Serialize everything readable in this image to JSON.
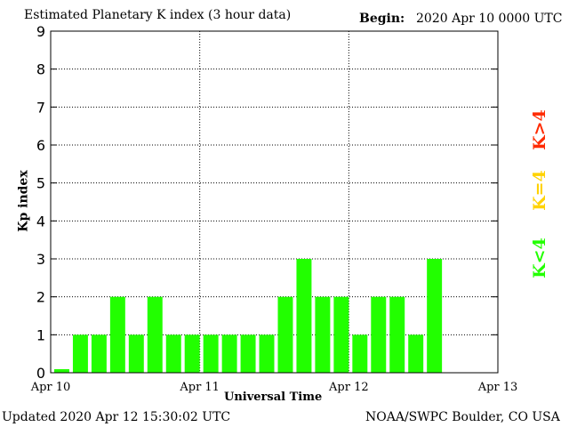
{
  "chart_data": {
    "type": "bar",
    "title": "Estimated Planetary K index (3 hour data)",
    "begin_label": "Begin:",
    "begin_value": "2020 Apr 10 0000 UTC",
    "xlabel": "Universal Time",
    "ylabel": "Kp index",
    "ylim": [
      0,
      9
    ],
    "yticks": [
      "0",
      "1",
      "2",
      "3",
      "4",
      "5",
      "6",
      "7",
      "8",
      "9"
    ],
    "xticks": [
      "Apr 10",
      "Apr 11",
      "Apr 12",
      "Apr 13"
    ],
    "bar_interval_hours": 3,
    "values": [
      0,
      1,
      1,
      2,
      1,
      2,
      1,
      1,
      1,
      1,
      1,
      1,
      2,
      3,
      2,
      2,
      1,
      2,
      2,
      1,
      3
    ],
    "grid": true,
    "legend": [
      {
        "label": "K<4",
        "color": "#22ff00"
      },
      {
        "label": "K=4",
        "color": "#ffd200"
      },
      {
        "label": "K>4",
        "color": "#ff2a00"
      }
    ],
    "legend_position": "right"
  },
  "footer": {
    "updated_label": "Updated",
    "updated_value": "2020 Apr 12 15:30:02 UTC",
    "source": "NOAA/SWPC Boulder, CO USA"
  }
}
